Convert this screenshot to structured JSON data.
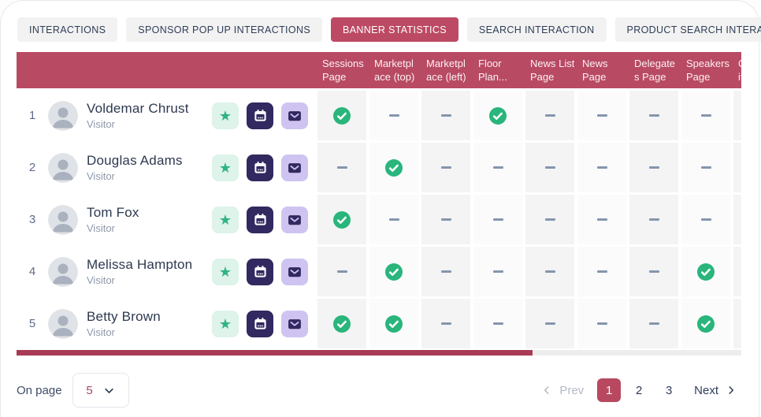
{
  "tabs": [
    {
      "label": "INTERACTIONS",
      "active": false
    },
    {
      "label": "SPONSOR POP UP INTERACTIONS",
      "active": false
    },
    {
      "label": "BANNER STATISTICS",
      "active": true
    },
    {
      "label": "SEARCH INTERACTION",
      "active": false
    },
    {
      "label": "PRODUCT SEARCH INTERACTION",
      "active": false
    }
  ],
  "table": {
    "columns": [
      {
        "label": "Sessions Page",
        "line1": "Sessions",
        "line2": "Page"
      },
      {
        "label": "Marketplace (top)",
        "line1": "Marketpl",
        "line2": "ace (top)"
      },
      {
        "label": "Marketplace (left)",
        "line1": "Marketpl",
        "line2": "ace (left)"
      },
      {
        "label": "Floor Plan...",
        "line1": "Floor",
        "line2": "Plan..."
      },
      {
        "label": "News List Page",
        "line1": "News List",
        "line2": "Page"
      },
      {
        "label": "News Page",
        "line1": "News",
        "line2": "Page"
      },
      {
        "label": "Delegates Page",
        "line1": "Delegate",
        "line2": "s Page"
      },
      {
        "label": "Speakers Page",
        "line1": "Speakers",
        "line2": "Page"
      },
      {
        "label": "Community Page",
        "line1": "Commun",
        "line2": "ity Page"
      }
    ],
    "rows": [
      {
        "index": "1",
        "name": "Voldemar Chrust",
        "role": "Visitor",
        "values": [
          "check",
          "dash",
          "dash",
          "check",
          "dash",
          "dash",
          "dash",
          "dash",
          ""
        ]
      },
      {
        "index": "2",
        "name": "Douglas Adams",
        "role": "Visitor",
        "values": [
          "dash",
          "check",
          "dash",
          "dash",
          "dash",
          "dash",
          "dash",
          "dash",
          ""
        ]
      },
      {
        "index": "3",
        "name": "Tom Fox",
        "role": "Visitor",
        "values": [
          "check",
          "dash",
          "dash",
          "dash",
          "dash",
          "dash",
          "dash",
          "dash",
          ""
        ]
      },
      {
        "index": "4",
        "name": "Melissa Hampton",
        "role": "Visitor",
        "values": [
          "dash",
          "check",
          "dash",
          "dash",
          "dash",
          "dash",
          "dash",
          "check",
          ""
        ]
      },
      {
        "index": "5",
        "name": "Betty Brown",
        "role": "Visitor",
        "values": [
          "check",
          "check",
          "dash",
          "dash",
          "dash",
          "dash",
          "dash",
          "check",
          ""
        ]
      }
    ]
  },
  "footer": {
    "on_page_label": "On page",
    "page_size_value": "5",
    "pagination": {
      "prev_label": "Prev",
      "next_label": "Next",
      "pages": [
        {
          "label": "1",
          "active": true
        },
        {
          "label": "2",
          "active": false
        },
        {
          "label": "3",
          "active": false
        }
      ]
    }
  },
  "colors": {
    "accent_crimson": "#b84a63",
    "active_tab": "#bc4a64",
    "active_page": "#b8485f",
    "scrollbar_thumb": "#a83a55",
    "check_green": "#29b57c",
    "star_green": "#2eb384",
    "star_button_bg": "#def3e9",
    "calendar_button_bg": "#322960",
    "mail_button_bg": "#cfc4f1",
    "text_dark": "#2e3d57",
    "text_muted": "#8e99a9"
  }
}
